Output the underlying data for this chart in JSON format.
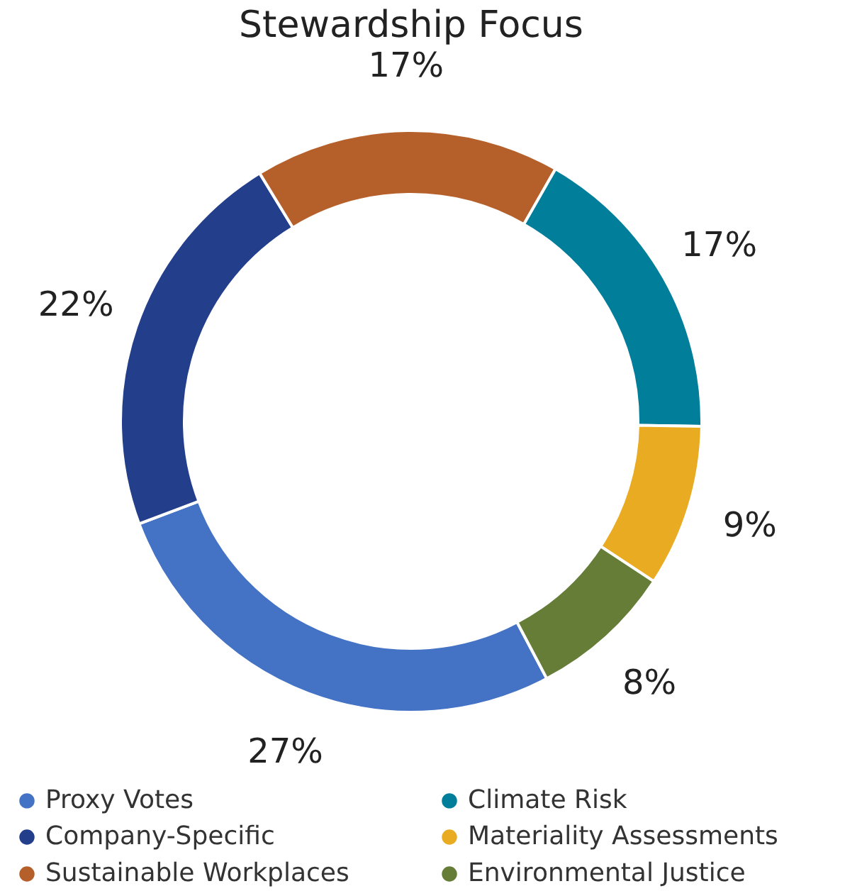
{
  "chart_data": {
    "type": "donut",
    "title": "Stewardship Focus",
    "categories": [
      "Proxy Votes",
      "Company-Specific",
      "Sustainable Workplaces",
      "Climate Risk",
      "Materiality Assessments",
      "Environmental Justice"
    ],
    "values": [
      27,
      22,
      17,
      17,
      9,
      8
    ],
    "colors": [
      "#4472c4",
      "#233e8b",
      "#b5602a",
      "#007e9a",
      "#e8ab22",
      "#657d37"
    ],
    "value_labels": [
      "27%",
      "22%",
      "17%",
      "17%",
      "9%",
      "8%"
    ],
    "legend": "bottom"
  }
}
